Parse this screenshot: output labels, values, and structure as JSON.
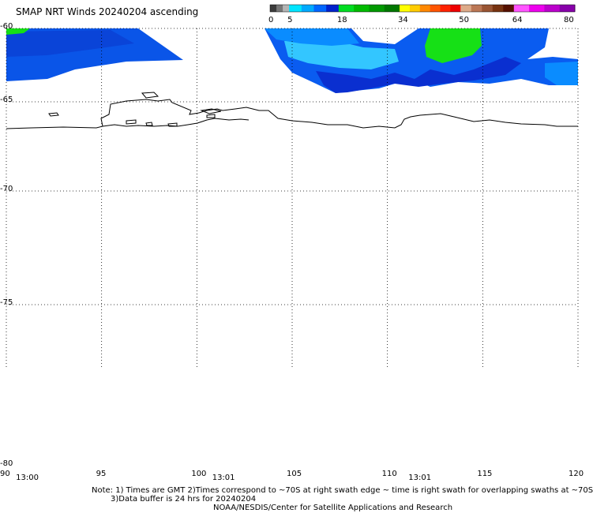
{
  "title": "SMAP NRT Winds 20240204 ascending",
  "colorbar": {
    "tick_labels": [
      "0",
      "5",
      "18",
      "34",
      "50",
      "64",
      "80"
    ],
    "segments": [
      {
        "from": 0,
        "to": 5,
        "colors": [
          "#3c3c3c",
          "#777777",
          "#b4b4b4"
        ]
      },
      {
        "from": 5,
        "to": 18,
        "colors": [
          "#00e5ff",
          "#00aaff",
          "#0066ff",
          "#0022cc"
        ]
      },
      {
        "from": 18,
        "to": 34,
        "colors": [
          "#00dd22",
          "#00bb00",
          "#009900",
          "#007700"
        ]
      },
      {
        "from": 34,
        "to": 50,
        "colors": [
          "#ffff00",
          "#ffcc00",
          "#ff8800",
          "#ff5500",
          "#ff2200",
          "#ee0000"
        ]
      },
      {
        "from": 50,
        "to": 64,
        "colors": [
          "#ddaa88",
          "#bb7755",
          "#995533",
          "#773311",
          "#551100"
        ]
      },
      {
        "from": 64,
        "to": 80,
        "colors": [
          "#ff55ff",
          "#ee00ee",
          "#bb00cc",
          "#8800aa"
        ]
      }
    ]
  },
  "map": {
    "lat_ticks": [
      "-60",
      "-65",
      "-70",
      "-75",
      "-80"
    ],
    "lon_ticks": [
      "90",
      "95",
      "100",
      "105",
      "110",
      "115",
      "120"
    ],
    "lat_values": [
      -60,
      -65,
      -70,
      -75,
      -80
    ],
    "lon_values": [
      90,
      95,
      100,
      105,
      110,
      115,
      120
    ],
    "lon_range": [
      90,
      120
    ],
    "lat_range": [
      -60,
      -80
    ],
    "swath_times": [
      {
        "label": "13:00",
        "lon": 91
      },
      {
        "label": "13:01",
        "lon": 101.3
      },
      {
        "label": "13:01",
        "lon": 111.6
      }
    ]
  },
  "notes": {
    "line1": "Note: 1) Times are GMT 2)Times correspond to ~70S at right swath edge ~ time is right swath for overlapping swaths at ~70S",
    "line2": "3)Data buffer is 24 hrs for 20240204",
    "line3": "NOAA/NESDIS/Center for Satellite Applications and Research"
  },
  "colors": {
    "wind_light_blue": "#33c6ff",
    "wind_mid_blue": "#0a8cff",
    "wind_blue": "#0a5cf0",
    "wind_dark_blue": "#0a2fd0",
    "wind_green": "#16e016",
    "coastline": "#000000",
    "grid": "#000000"
  }
}
